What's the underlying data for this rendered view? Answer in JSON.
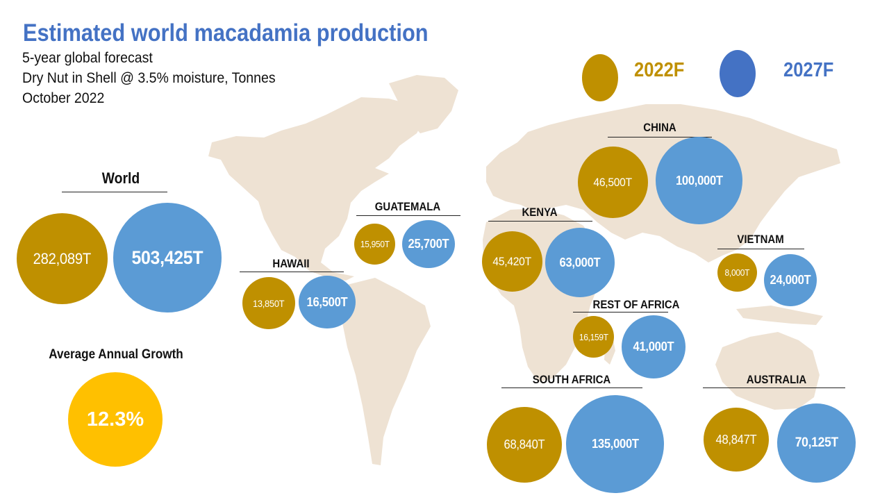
{
  "header": {
    "title": "Estimated world macadamia production",
    "subtitle_1": "5-year global forecast",
    "subtitle_2": "Dry Nut in Shell @ 3.5% moisture, Tonnes",
    "subtitle_3": "October 2022"
  },
  "legend": {
    "item_2022": {
      "label": "2022F",
      "color": "#BF9000"
    },
    "item_2027": {
      "label": "2027F",
      "color": "#4472C4"
    }
  },
  "colors": {
    "title": "#4472C4",
    "bubble_2022": "#BF9000",
    "bubble_2027": "#5B9BD5",
    "growth": "#FFC000",
    "land": "#EEE2D3"
  },
  "regions": {
    "world": {
      "name": "World",
      "v2022": "282,089T",
      "v2027": "503,425T"
    },
    "guatemala": {
      "name": "GUATEMALA",
      "v2022": "15,950T",
      "v2027": "25,700T"
    },
    "hawaii": {
      "name": "HAWAII",
      "v2022": "13,850T",
      "v2027": "16,500T"
    },
    "kenya": {
      "name": "KENYA",
      "v2022": "45,420T",
      "v2027": "63,000T"
    },
    "china": {
      "name": "CHINA",
      "v2022": "46,500T",
      "v2027": "100,000T"
    },
    "vietnam": {
      "name": "VIETNAM",
      "v2022": "8,000T",
      "v2027": "24,000T"
    },
    "rest_of_africa": {
      "name": "REST OF AFRICA",
      "v2022": "16,159T",
      "v2027": "41,000T"
    },
    "south_africa": {
      "name": "SOUTH AFRICA",
      "v2022": "68,840T",
      "v2027": "135,000T"
    },
    "australia": {
      "name": "AUSTRALIA",
      "v2022": "48,847T",
      "v2027": "70,125T"
    }
  },
  "growth": {
    "label": "Average Annual Growth",
    "value": "12.3%"
  }
}
